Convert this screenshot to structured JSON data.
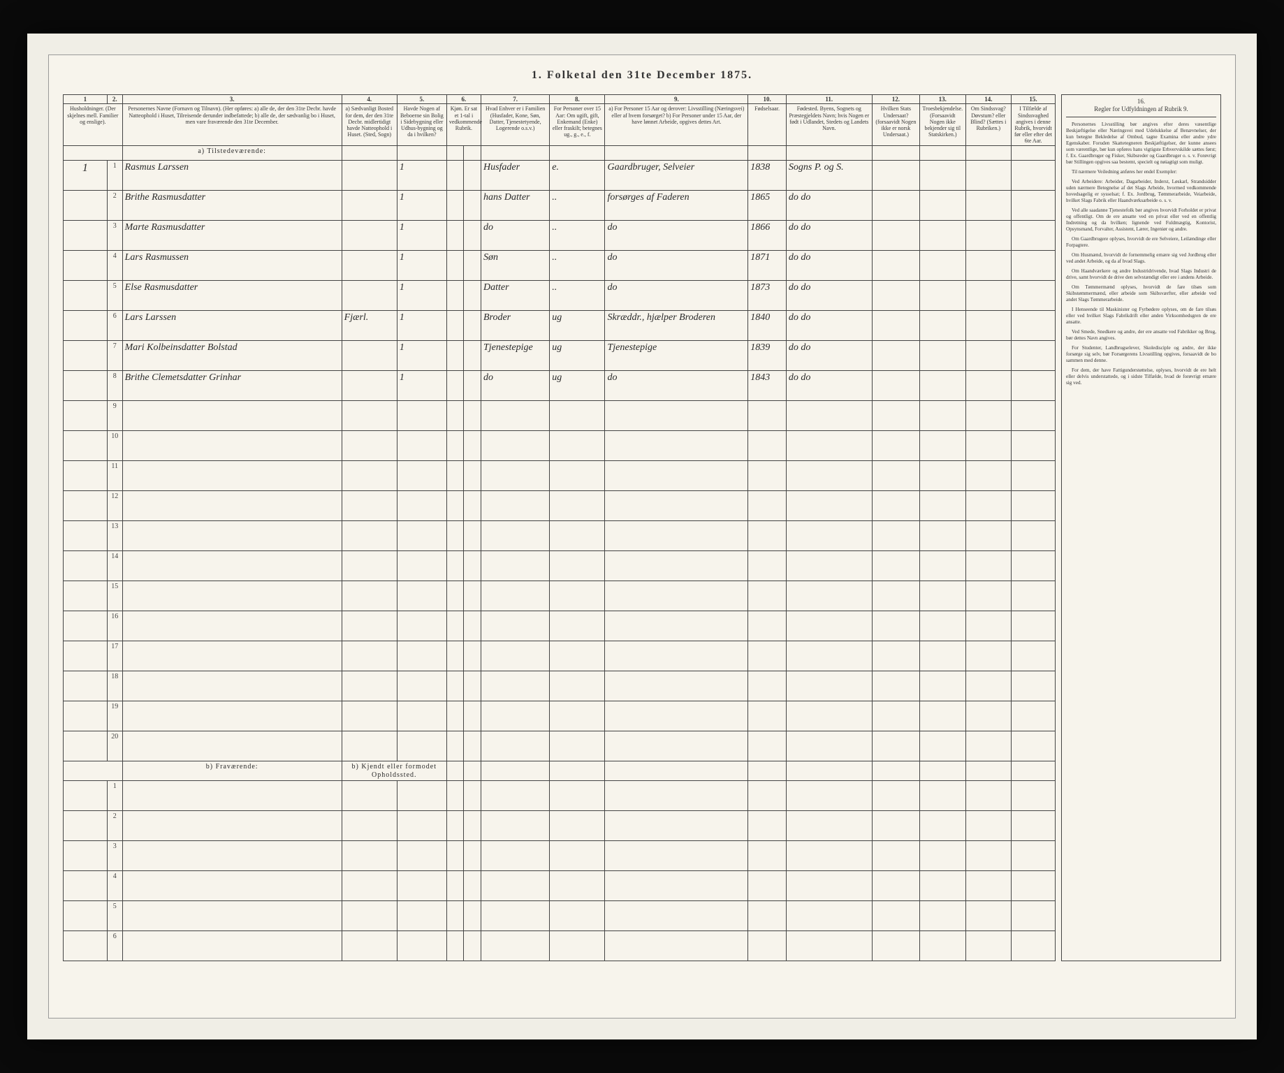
{
  "title": "1. Folketal den 31te December 1875.",
  "col_numbers": [
    "1",
    "2.",
    "3.",
    "4.",
    "5.",
    "6.",
    "7.",
    "8.",
    "9.",
    "10.",
    "11.",
    "12.",
    "13.",
    "14.",
    "15.",
    "16."
  ],
  "headers": {
    "c1": "Husholdninger. (Der skjelnes mell. Familier og enslige).",
    "c2": "",
    "c3": "Personernes Navne (Fornavn og Tilnavn).\n(Her opføres:\na) alle de, der den 31te Decbr. havde Natteophold i Huset, Tilreisende derunder indbefattede;\nb) alle de, der sædvanlig bo i Huset, men vare fraværende den 31te December.",
    "c4": "a) Sædvanligt Bosted for dem, der den 31te Decbr. midlertidigt havde Natteophold i Huset. (Sted, Sogn)",
    "c5": "Havde Nogen af Beboerne sin Bolig i Sidebygning eller Udhus-bygning og da i hvilken?",
    "c6": "Kjøn. Er sat et 1-tal i vedkommende Rubrik.",
    "c7": "Hvad Enhver er i Familien (Husfader, Kone, Søn, Datter, Tjenestetyende, Logerende o.s.v.)",
    "c8": "For Personer over 15 Aar: Om ugift, gift, Enkemand (Enke) eller fraskilt; betegnes ug., g., e., f.",
    "c9": "a) For Personer 15 Aar og derover: Livsstilling (Næringsvei) eller af hvem forsørget? b) For Personer under 15 Aar, der have lønnet Arbeide, opgives dettes Art.",
    "c10": "Fødselsaar.",
    "c11": "Fødested. Byens, Sognets og Præstegjeldets Navn; hvis Nogen er født i Udlandet, Stedets og Landets Navn.",
    "c12": "Hvilken Stats Undersaat? (forsaavidt Nogen ikke er norsk Undersaat.)",
    "c13": "Troesbekjendelse. (Forsaavidt Nogen ikke bekjender sig til Statskirken.)",
    "c14": "Om Sindssvag? Døvstum? eller Blind? (Sættes i Rubriken.)",
    "c15": "I Tilfælde af Sindssvaghed angives i denne Rubrik, hvorvidt før eller efter det 6te Aar.",
    "c16": "Regler for Udfyldningen af Rubrik 9."
  },
  "section_a": "a) Tilstedeværende:",
  "section_b": "b) Fraværende:",
  "section_b_header": "b) Kjendt eller formodet Opholdssted.",
  "rows_a": [
    {
      "h": "1",
      "n": "1",
      "name": "Rasmus Larssen",
      "c4": "",
      "c5": "1",
      "c7": "Husfader",
      "c8": "e.",
      "c9": "Gaardbruger, Selveier",
      "c10": "1838",
      "c11": "Sogns P. og S."
    },
    {
      "h": "",
      "n": "2",
      "name": "Brithe Rasmusdatter",
      "c4": "",
      "c5": "1",
      "c7": "hans Datter",
      "c8": "..",
      "c9": "forsørges af Faderen",
      "c10": "1865",
      "c11": "do   do"
    },
    {
      "h": "",
      "n": "3",
      "name": "Marte Rasmusdatter",
      "c4": "",
      "c5": "1",
      "c7": "do",
      "c8": "..",
      "c9": "do",
      "c10": "1866",
      "c11": "do   do"
    },
    {
      "h": "",
      "n": "4",
      "name": "Lars Rasmussen",
      "c4": "",
      "c5": "1",
      "c7": "Søn",
      "c8": "..",
      "c9": "do",
      "c10": "1871",
      "c11": "do   do"
    },
    {
      "h": "",
      "n": "5",
      "name": "Else Rasmusdatter",
      "c4": "",
      "c5": "1",
      "c7": "Datter",
      "c8": "..",
      "c9": "do",
      "c10": "1873",
      "c11": "do   do"
    },
    {
      "h": "",
      "n": "6",
      "name": "Lars Larssen",
      "c4": "Fjærl.",
      "c5": "1",
      "c7": "Broder",
      "c8": "ug",
      "c9": "Skræddr., hjælper Broderen",
      "c10": "1840",
      "c11": "do   do"
    },
    {
      "h": "",
      "n": "7",
      "name": "Mari Kolbeinsdatter Bolstad",
      "c4": "",
      "c5": "1",
      "c7": "Tjenestepige",
      "c8": "ug",
      "c9": "Tjenestepige",
      "c10": "1839",
      "c11": "do   do"
    },
    {
      "h": "",
      "n": "8",
      "name": "Brithe Clemetsdatter Grinhar",
      "c4": "",
      "c5": "1",
      "c7": "do",
      "c8": "ug",
      "c9": "do",
      "c10": "1843",
      "c11": "do   do"
    }
  ],
  "blank_a": [
    "9",
    "10",
    "11",
    "12",
    "13",
    "14",
    "15",
    "16",
    "17",
    "18",
    "19",
    "20"
  ],
  "blank_b": [
    "1",
    "2",
    "3",
    "4",
    "5",
    "6"
  ],
  "rules_title": "Regler for Udfyldningen af Rubrik 9.",
  "rules_paragraphs": [
    "Personernes Livsstilling bør angives efter deres væsentlige Beskjæftigelse eller Næringsvei med Udelukkelse af Benævnelser, der kun betegne Bekledelse af Ombud, tagne Examina eller andre ydre Egenskaber. Foruden Skattetegneren Beskjæftigelser, der kunne ansees som værentlige, bør kun opføres hans vigtigste Erhvervskilde sættes først; f. Ex. Gaardbruger og Fisker, Skibsreder og Gaardbruger o. s. v. Forøvrigt bør Stillingen opgives saa bestemt, specielt og nøiagtigt som muligt.",
    "Til nærmere Veiledning anføres her endel Exempler:",
    "Ved Arbeidere: Arbeider, Dagarbeider, Inderst, Løskarl, Strandsidder uden nærmere Betegnelse af det Slags Arbeide, hvormed vedkommende hovedsagelig er sysselsat; f. Ex. Jordbrug, Tømmerarbeide, Veiarbeide, hvilket Slags Fabrik eller Haandværksarbeide o. s. v.",
    "Ved alle saadanne Tjenestefolk bør angives hvorvidt Forholdet er privat og offentligt. Om de ere ansatte ved en privat eller ved en offentlig Indretning og da hvilken; lignende ved Fuldmægtig, Kontorist, Opsynsmand, Forvalter, Assistent, Lærer, Ingeniør og andre.",
    "Om Gaardbrugere oplyses, hvorvidt de ere Selveiere, Leilændinge eller Forpagtere.",
    "Om Husmænd, hvorvidt de fornemmelig ernære sig ved Jordbrug eller ved andet Arbeide, og da af hvad Slags.",
    "Om Haandværkere og andre Industridrivende, hvad Slags Industri de drive, samt hvorvidt de drive den selvstændigt eller ere i andens Arbeide.",
    "Om Tømmermænd oplyses, hvorvidt de fare tilsøs som Skibstømmermænd, eller arbeide som Skibsværfter, eller arbeide ved andet Slags Tømmerarbeide.",
    "I Henseende til Maskinister og Fyrbødere oplyses, om de fare tilsøs eller ved hvilket Slags Fabrikdrift eller anden Virksomhedsgren de ere ansatte.",
    "Ved Smede, Snedkere og andre, der ere ansatte ved Fabrikker og Brug, bør dettes Navn angives.",
    "For Studenter, Landbrugselever, Skoledisciple og andre, der ikke forsørge sig selv, bør Forsørgerens Livsstilling opgives, forsaavidt de bo sammen med denne.",
    "For dem, der have Fattigunderstøttelse, oplyses, hvorvidt de ere helt eller delvis understattede, og i sidste Tilfælde, hvad de forøvrigt ernære sig ved."
  ]
}
